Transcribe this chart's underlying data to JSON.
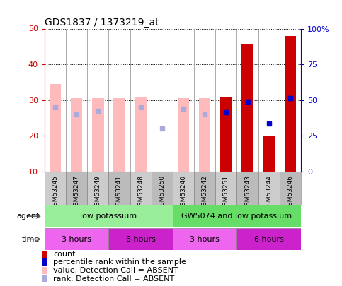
{
  "title": "GDS1837 / 1373219_at",
  "samples": [
    "GSM53245",
    "GSM53247",
    "GSM53249",
    "GSM53241",
    "GSM53248",
    "GSM53250",
    "GSM53240",
    "GSM53242",
    "GSM53251",
    "GSM53243",
    "GSM53244",
    "GSM53246"
  ],
  "bar_values": [
    34.5,
    30.5,
    30.5,
    30.5,
    31.0,
    null,
    30.5,
    30.5,
    31.0,
    45.5,
    20.0,
    48.0
  ],
  "is_absent": [
    true,
    true,
    true,
    true,
    true,
    true,
    true,
    true,
    false,
    false,
    false,
    false
  ],
  "rank_values": [
    28.0,
    26.0,
    27.0,
    null,
    28.0,
    22.0,
    27.5,
    26.0,
    26.5,
    29.5,
    23.5,
    30.5
  ],
  "rank_absent": [
    true,
    true,
    true,
    true,
    true,
    true,
    true,
    true,
    false,
    false,
    false,
    false
  ],
  "percentile_values": [
    null,
    null,
    null,
    null,
    null,
    null,
    null,
    null,
    null,
    29.5,
    null,
    30.5
  ],
  "bar_color_present": "#cc0000",
  "bar_color_absent": "#ffbbbb",
  "rank_color_present": "#0000cc",
  "rank_color_absent": "#aaaadd",
  "ylim_left": [
    10,
    50
  ],
  "ylim_right": [
    0,
    100
  ],
  "yticks_left": [
    10,
    20,
    30,
    40,
    50
  ],
  "yticks_right": [
    0,
    25,
    50,
    75,
    100
  ],
  "ytick_labels_right": [
    "0",
    "25",
    "50",
    "75",
    "100%"
  ],
  "agent_groups": [
    {
      "label": "low potassium",
      "start": 0,
      "end": 6,
      "color": "#99ee99"
    },
    {
      "label": "GW5074 and low potassium",
      "start": 6,
      "end": 12,
      "color": "#66dd66"
    }
  ],
  "time_groups": [
    {
      "label": "3 hours",
      "start": 0,
      "end": 3,
      "color": "#ee66ee"
    },
    {
      "label": "6 hours",
      "start": 3,
      "end": 6,
      "color": "#cc22cc"
    },
    {
      "label": "3 hours",
      "start": 6,
      "end": 9,
      "color": "#ee66ee"
    },
    {
      "label": "6 hours",
      "start": 9,
      "end": 12,
      "color": "#cc22cc"
    }
  ],
  "legend_items": [
    {
      "label": "count",
      "color": "#cc0000"
    },
    {
      "label": "percentile rank within the sample",
      "color": "#0000cc"
    },
    {
      "label": "value, Detection Call = ABSENT",
      "color": "#ffbbbb"
    },
    {
      "label": "rank, Detection Call = ABSENT",
      "color": "#aaaadd"
    }
  ],
  "bar_width": 0.55,
  "left_color": "#cc0000",
  "right_color": "#0000cc",
  "bg_color": "#ffffff",
  "grid_color": "#000000",
  "bar_bottom": 10,
  "label_row_color": "#bbbbbb",
  "xticklabel_bg": "#cccccc"
}
